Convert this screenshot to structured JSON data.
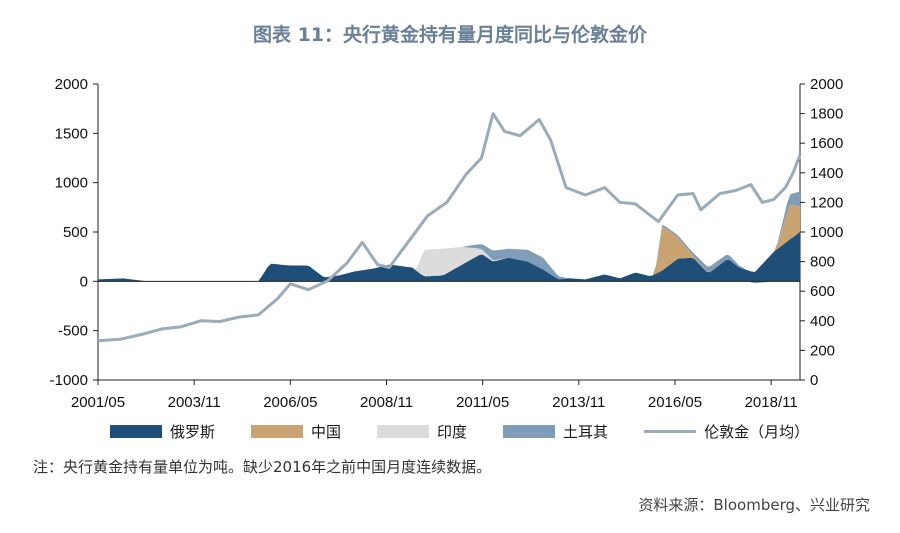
{
  "title": "图表 11：央行黄金持有量月度同比与伦敦金价",
  "note": "注：央行黄金持有量单位为吨。缺少2016年之前中国月度连续数据。",
  "source": "资料来源：Bloomberg、兴业研究",
  "legend": {
    "russia": "俄罗斯",
    "china": "中国",
    "india": "印度",
    "turkey": "土耳其",
    "gold": "伦敦金（月均）"
  },
  "chart_data": {
    "type": "area",
    "x_tick_labels": [
      "2001/05",
      "2003/11",
      "2006/05",
      "2008/11",
      "2011/05",
      "2013/11",
      "2016/05",
      "2018/11"
    ],
    "x_tick_positions": [
      2001.33,
      2003.83,
      2006.33,
      2008.83,
      2011.33,
      2013.83,
      2016.33,
      2018.83
    ],
    "x_range": [
      2001.33,
      2019.58
    ],
    "y_left": {
      "range": [
        -1000,
        2000
      ],
      "ticks": [
        -1000,
        -500,
        0,
        500,
        1000,
        1500,
        2000
      ]
    },
    "y_right": {
      "range": [
        0,
        2000
      ],
      "ticks": [
        0,
        200,
        400,
        600,
        800,
        1000,
        1200,
        1400,
        1600,
        1800,
        2000
      ]
    },
    "colors": {
      "russia": "#1f4e79",
      "china": "#c9a472",
      "india": "#dcdcdc",
      "turkey": "#7f9db9",
      "gold": "#9aabba"
    },
    "series": [
      {
        "key": "russia",
        "name": "俄罗斯",
        "axis": "left",
        "stacked": true,
        "points": [
          [
            2001.33,
            20
          ],
          [
            2002.0,
            30
          ],
          [
            2002.4,
            10
          ],
          [
            2002.6,
            0
          ],
          [
            2005.0,
            0
          ],
          [
            2005.5,
            0
          ],
          [
            2005.8,
            180
          ],
          [
            2006.3,
            160
          ],
          [
            2006.8,
            160
          ],
          [
            2007.2,
            40
          ],
          [
            2007.6,
            60
          ],
          [
            2008.0,
            100
          ],
          [
            2008.5,
            130
          ],
          [
            2008.9,
            170
          ],
          [
            2009.5,
            140
          ],
          [
            2009.8,
            50
          ],
          [
            2010.3,
            60
          ],
          [
            2010.8,
            170
          ],
          [
            2011.3,
            280
          ],
          [
            2011.6,
            200
          ],
          [
            2012.0,
            240
          ],
          [
            2012.5,
            200
          ],
          [
            2012.9,
            120
          ],
          [
            2013.3,
            20
          ],
          [
            2013.6,
            30
          ],
          [
            2014.0,
            20
          ],
          [
            2014.5,
            70
          ],
          [
            2014.9,
            30
          ],
          [
            2015.3,
            90
          ],
          [
            2015.7,
            50
          ],
          [
            2016.0,
            110
          ],
          [
            2016.4,
            230
          ],
          [
            2016.8,
            240
          ],
          [
            2017.2,
            80
          ],
          [
            2017.7,
            230
          ],
          [
            2018.0,
            140
          ],
          [
            2018.4,
            90
          ],
          [
            2018.9,
            300
          ],
          [
            2019.3,
            420
          ],
          [
            2019.58,
            500
          ]
        ]
      },
      {
        "key": "china",
        "name": "中国",
        "axis": "left",
        "stacked": true,
        "points": [
          [
            2001.33,
            0
          ],
          [
            2015.3,
            0
          ],
          [
            2015.8,
            0
          ],
          [
            2016.0,
            450
          ],
          [
            2016.4,
            220
          ],
          [
            2016.8,
            20
          ],
          [
            2017.2,
            0
          ],
          [
            2017.7,
            0
          ],
          [
            2018.0,
            0
          ],
          [
            2018.4,
            0
          ],
          [
            2018.9,
            0
          ],
          [
            2019.0,
            40
          ],
          [
            2019.3,
            360
          ],
          [
            2019.58,
            260
          ]
        ]
      },
      {
        "key": "india",
        "name": "印度",
        "axis": "left",
        "stacked": true,
        "points": [
          [
            2001.33,
            0
          ],
          [
            2009.2,
            0
          ],
          [
            2009.6,
            0
          ],
          [
            2009.8,
            270
          ],
          [
            2010.3,
            270
          ],
          [
            2010.8,
            180
          ],
          [
            2011.3,
            50
          ],
          [
            2011.6,
            10
          ],
          [
            2012.0,
            0
          ],
          [
            2013.3,
            0
          ],
          [
            2013.6,
            0
          ],
          [
            2014.0,
            0
          ],
          [
            2019.58,
            0
          ]
        ]
      },
      {
        "key": "turkey",
        "name": "土耳其",
        "axis": "left",
        "stacked": true,
        "points": [
          [
            2001.33,
            0
          ],
          [
            2010.8,
            0
          ],
          [
            2011.3,
            50
          ],
          [
            2011.6,
            100
          ],
          [
            2012.0,
            90
          ],
          [
            2012.5,
            120
          ],
          [
            2012.9,
            120
          ],
          [
            2013.3,
            30
          ],
          [
            2013.6,
            0
          ],
          [
            2014.0,
            0
          ],
          [
            2015.7,
            0
          ],
          [
            2016.0,
            20
          ],
          [
            2016.4,
            20
          ],
          [
            2016.8,
            30
          ],
          [
            2017.2,
            60
          ],
          [
            2017.7,
            50
          ],
          [
            2018.0,
            20
          ],
          [
            2018.4,
            -20
          ],
          [
            2018.9,
            0
          ],
          [
            2019.3,
            100
          ],
          [
            2019.58,
            150
          ]
        ]
      },
      {
        "key": "gold",
        "name": "伦敦金（月均）",
        "axis": "right",
        "type": "line",
        "points": [
          [
            2001.33,
            265
          ],
          [
            2001.9,
            275
          ],
          [
            2002.5,
            310
          ],
          [
            2003.0,
            345
          ],
          [
            2003.5,
            360
          ],
          [
            2004.0,
            400
          ],
          [
            2004.5,
            395
          ],
          [
            2005.0,
            425
          ],
          [
            2005.5,
            440
          ],
          [
            2006.0,
            550
          ],
          [
            2006.33,
            650
          ],
          [
            2006.8,
            610
          ],
          [
            2007.3,
            670
          ],
          [
            2007.8,
            790
          ],
          [
            2008.2,
            930
          ],
          [
            2008.6,
            780
          ],
          [
            2008.9,
            760
          ],
          [
            2009.3,
            900
          ],
          [
            2009.9,
            1110
          ],
          [
            2010.4,
            1200
          ],
          [
            2010.9,
            1390
          ],
          [
            2011.3,
            1500
          ],
          [
            2011.6,
            1800
          ],
          [
            2011.9,
            1680
          ],
          [
            2012.3,
            1650
          ],
          [
            2012.8,
            1760
          ],
          [
            2013.1,
            1620
          ],
          [
            2013.5,
            1300
          ],
          [
            2014.0,
            1250
          ],
          [
            2014.5,
            1300
          ],
          [
            2014.9,
            1200
          ],
          [
            2015.3,
            1190
          ],
          [
            2015.9,
            1070
          ],
          [
            2016.4,
            1250
          ],
          [
            2016.8,
            1260
          ],
          [
            2017.0,
            1150
          ],
          [
            2017.5,
            1260
          ],
          [
            2017.9,
            1280
          ],
          [
            2018.3,
            1320
          ],
          [
            2018.6,
            1200
          ],
          [
            2018.9,
            1220
          ],
          [
            2019.2,
            1300
          ],
          [
            2019.4,
            1400
          ],
          [
            2019.58,
            1520
          ]
        ]
      }
    ]
  }
}
